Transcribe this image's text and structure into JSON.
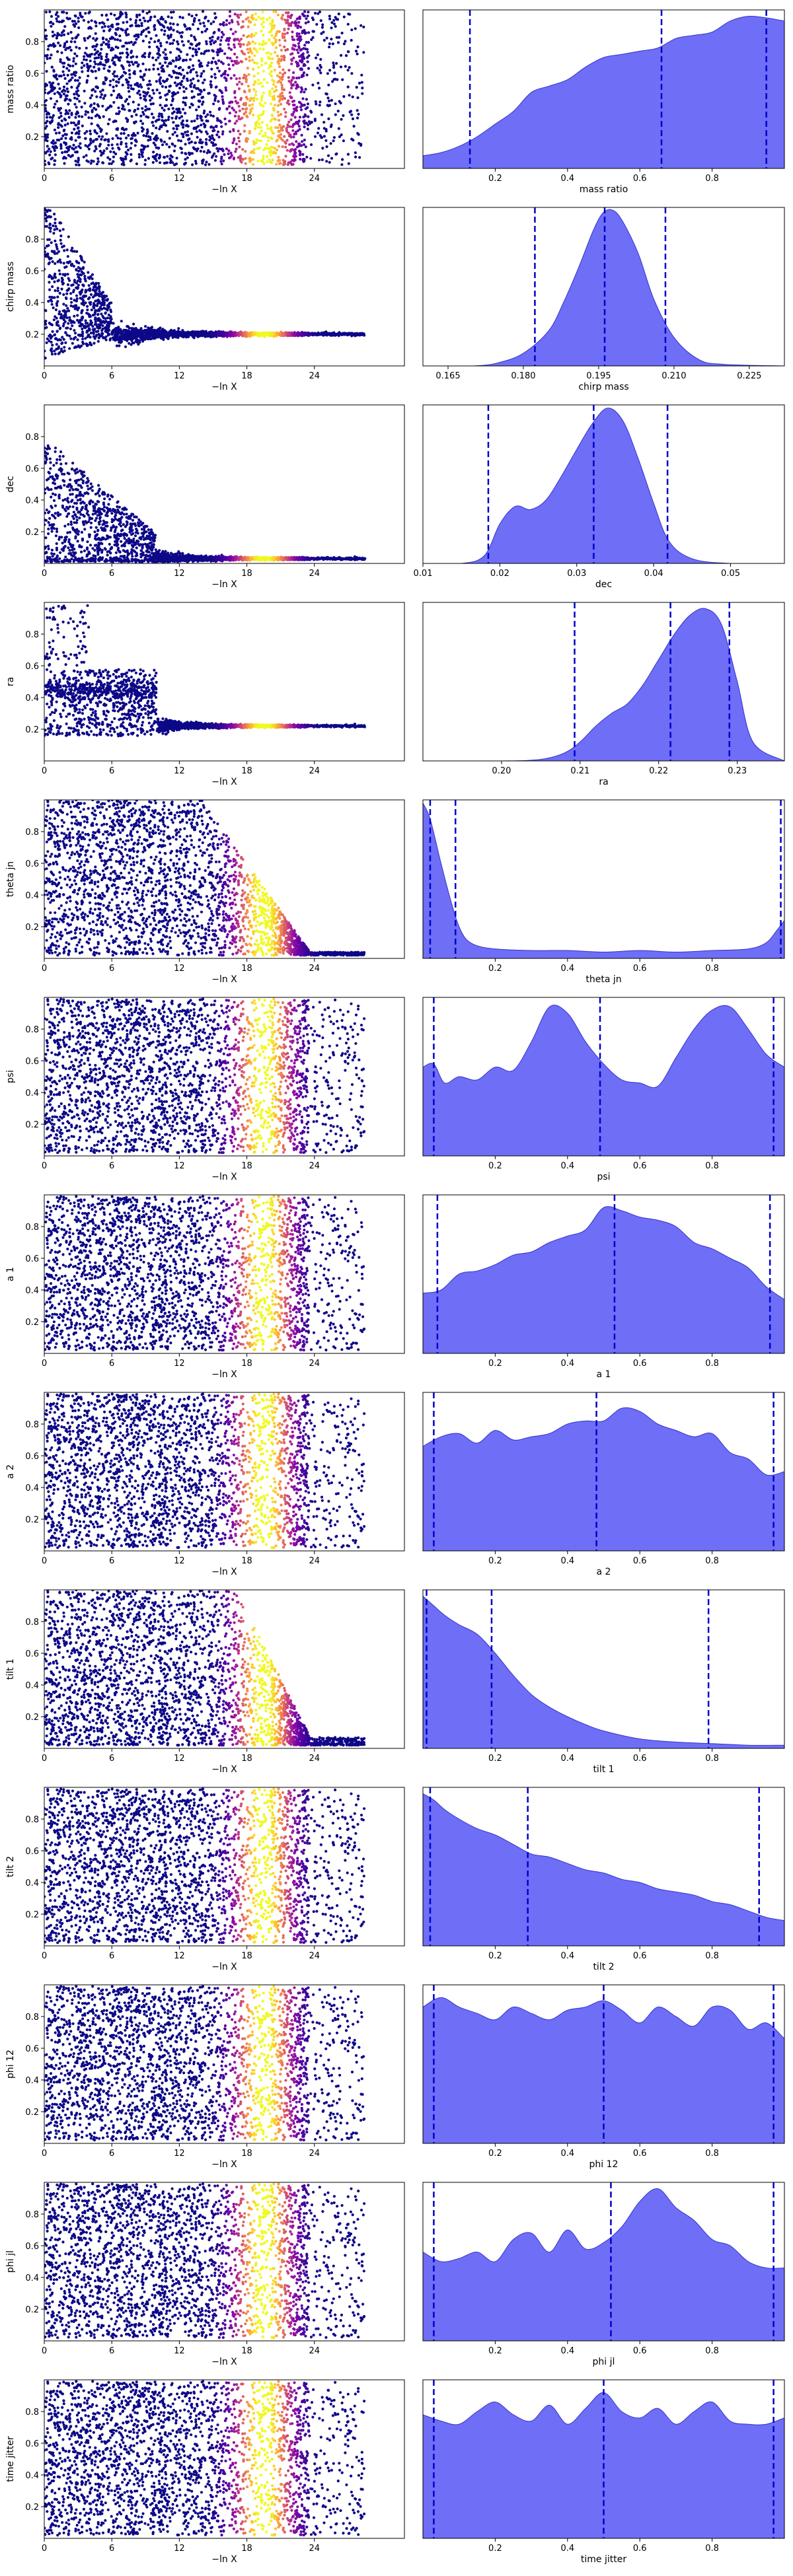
{
  "chart_data": {
    "type": "scatter",
    "description": "Dynesty trace plot: left column = samples vs -ln X coloured by weight; right column = marginal posterior KDE with dashed quantile lines",
    "scatter_xlabel": "−ln X",
    "scatter_xticks": [
      0,
      6,
      12,
      18,
      24
    ],
    "scatter_xlim": [
      0,
      32
    ],
    "colormap": "plasma",
    "hist_fill_color": "#6666f5",
    "hist_edge_color": "#3333cc",
    "quantile_line_color": "#0000cc",
    "panels": [
      {
        "param": "mass ratio",
        "scatter_mode": "uniform",
        "scatter_yticks": [
          "0.2",
          "0.4",
          "0.6",
          "0.8"
        ],
        "scatter_ylim": [
          0,
          1
        ],
        "hist_xlim": [
          0,
          1
        ],
        "hist_xticks": [
          "0.2",
          "0.4",
          "0.6",
          "0.8"
        ],
        "hist_x": [
          0,
          0.05,
          0.1,
          0.15,
          0.2,
          0.25,
          0.3,
          0.35,
          0.4,
          0.45,
          0.5,
          0.55,
          0.6,
          0.65,
          0.7,
          0.75,
          0.8,
          0.85,
          0.9,
          0.95,
          1.0
        ],
        "hist_y": [
          0.08,
          0.1,
          0.14,
          0.2,
          0.28,
          0.36,
          0.48,
          0.52,
          0.56,
          0.64,
          0.7,
          0.72,
          0.74,
          0.76,
          0.82,
          0.84,
          0.86,
          0.93,
          0.96,
          0.95,
          0.93
        ],
        "quantiles": [
          0.13,
          0.66,
          0.95
        ]
      },
      {
        "param": "chirp mass",
        "scatter_mode": "converge",
        "converge_to": 0.2,
        "scatter_yticks": [
          "0.2",
          "0.4",
          "0.6",
          "0.8"
        ],
        "scatter_ylim": [
          0,
          1
        ],
        "hist_xlim": [
          0.16,
          0.232
        ],
        "hist_xticks": [
          "0.165",
          "0.180",
          "0.195",
          "0.210",
          "0.225"
        ],
        "hist_x": [
          0.16,
          0.17,
          0.175,
          0.18,
          0.185,
          0.188,
          0.191,
          0.194,
          0.196,
          0.198,
          0.2,
          0.203,
          0.206,
          0.21,
          0.215,
          0.22,
          0.232
        ],
        "hist_y": [
          0,
          0.0,
          0.02,
          0.08,
          0.22,
          0.4,
          0.62,
          0.86,
          0.97,
          0.98,
          0.9,
          0.7,
          0.42,
          0.18,
          0.04,
          0.01,
          0
        ],
        "quantiles": [
          0.1823,
          0.1962,
          0.2083
        ]
      },
      {
        "param": "dec",
        "scatter_mode": "converge",
        "converge_to": 0.03,
        "scatter_yticks": [
          "0.2",
          "0.4",
          "0.6",
          "0.8"
        ],
        "scatter_ylim": [
          0,
          1
        ],
        "hist_xlim": [
          0.01,
          0.057
        ],
        "hist_xticks": [
          "0.01",
          "0.02",
          "0.03",
          "0.04",
          "0.05"
        ],
        "hist_x": [
          0.01,
          0.015,
          0.018,
          0.02,
          0.022,
          0.024,
          0.026,
          0.028,
          0.03,
          0.032,
          0.034,
          0.036,
          0.038,
          0.04,
          0.042,
          0.045,
          0.05,
          0.057
        ],
        "hist_y": [
          0,
          0,
          0.05,
          0.25,
          0.36,
          0.34,
          0.4,
          0.55,
          0.72,
          0.88,
          0.98,
          0.9,
          0.66,
          0.38,
          0.14,
          0.03,
          0,
          0
        ],
        "quantiles": [
          0.0185,
          0.0322,
          0.0418
        ]
      },
      {
        "param": "ra",
        "scatter_mode": "converge",
        "converge_to": 0.22,
        "scatter_yticks": [
          "0.2",
          "0.4",
          "0.6",
          "0.8"
        ],
        "scatter_ylim": [
          0,
          1
        ],
        "hist_xlim": [
          0.19,
          0.236
        ],
        "hist_xticks": [
          "0.20",
          "0.21",
          "0.22",
          "0.23"
        ],
        "hist_x": [
          0.19,
          0.2,
          0.205,
          0.208,
          0.21,
          0.212,
          0.214,
          0.216,
          0.218,
          0.22,
          0.222,
          0.224,
          0.226,
          0.228,
          0.23,
          0.232,
          0.236
        ],
        "hist_y": [
          0,
          0,
          0.01,
          0.05,
          0.12,
          0.22,
          0.3,
          0.36,
          0.48,
          0.64,
          0.8,
          0.92,
          0.96,
          0.86,
          0.5,
          0.12,
          0
        ],
        "quantiles": [
          0.2093,
          0.2215,
          0.229
        ]
      },
      {
        "param": "theta jn",
        "scatter_mode": "tail",
        "scatter_yticks": [
          "0.2",
          "0.4",
          "0.6",
          "0.8"
        ],
        "scatter_ylim": [
          0,
          1
        ],
        "hist_xlim": [
          0,
          1
        ],
        "hist_xticks": [
          "0.2",
          "0.4",
          "0.6",
          "0.8"
        ],
        "hist_x": [
          0,
          0.02,
          0.05,
          0.08,
          0.1,
          0.12,
          0.15,
          0.2,
          0.3,
          0.4,
          0.5,
          0.6,
          0.7,
          0.8,
          0.9,
          0.95,
          0.98,
          1.0
        ],
        "hist_y": [
          0.98,
          0.88,
          0.6,
          0.34,
          0.2,
          0.12,
          0.08,
          0.06,
          0.05,
          0.05,
          0.04,
          0.05,
          0.04,
          0.05,
          0.06,
          0.1,
          0.18,
          0.24
        ],
        "quantiles": [
          0.02,
          0.09,
          0.99
        ]
      },
      {
        "param": "psi",
        "scatter_mode": "uniform",
        "scatter_yticks": [
          "0.2",
          "0.4",
          "0.6",
          "0.8"
        ],
        "scatter_ylim": [
          0,
          1
        ],
        "hist_xlim": [
          0,
          1
        ],
        "hist_xticks": [
          "0.2",
          "0.4",
          "0.6",
          "0.8"
        ],
        "hist_x": [
          0,
          0.03,
          0.06,
          0.1,
          0.15,
          0.2,
          0.25,
          0.3,
          0.35,
          0.4,
          0.45,
          0.5,
          0.55,
          0.6,
          0.65,
          0.7,
          0.75,
          0.8,
          0.85,
          0.9,
          0.95,
          1.0
        ],
        "hist_y": [
          0.56,
          0.58,
          0.46,
          0.5,
          0.48,
          0.56,
          0.54,
          0.72,
          0.94,
          0.9,
          0.72,
          0.58,
          0.48,
          0.46,
          0.44,
          0.62,
          0.8,
          0.92,
          0.94,
          0.8,
          0.64,
          0.56
        ],
        "quantiles": [
          0.03,
          0.49,
          0.97
        ]
      },
      {
        "param": "a 1",
        "scatter_mode": "uniform",
        "scatter_yticks": [
          "0.2",
          "0.4",
          "0.6",
          "0.8"
        ],
        "scatter_ylim": [
          0,
          1
        ],
        "hist_xlim": [
          0,
          1
        ],
        "hist_xticks": [
          "0.2",
          "0.4",
          "0.6",
          "0.8"
        ],
        "hist_x": [
          0,
          0.05,
          0.1,
          0.15,
          0.2,
          0.25,
          0.3,
          0.35,
          0.4,
          0.45,
          0.5,
          0.55,
          0.6,
          0.65,
          0.7,
          0.75,
          0.8,
          0.85,
          0.9,
          0.95,
          1.0
        ],
        "hist_y": [
          0.38,
          0.4,
          0.5,
          0.52,
          0.56,
          0.62,
          0.64,
          0.7,
          0.74,
          0.78,
          0.92,
          0.9,
          0.86,
          0.84,
          0.8,
          0.7,
          0.66,
          0.6,
          0.54,
          0.42,
          0.34
        ],
        "quantiles": [
          0.04,
          0.53,
          0.96
        ]
      },
      {
        "param": "a 2",
        "scatter_mode": "uniform",
        "scatter_yticks": [
          "0.2",
          "0.4",
          "0.6",
          "0.8"
        ],
        "scatter_ylim": [
          0,
          1
        ],
        "hist_xlim": [
          0,
          1
        ],
        "hist_xticks": [
          "0.2",
          "0.4",
          "0.6",
          "0.8"
        ],
        "hist_x": [
          0,
          0.05,
          0.1,
          0.15,
          0.2,
          0.25,
          0.3,
          0.35,
          0.4,
          0.45,
          0.5,
          0.55,
          0.6,
          0.65,
          0.7,
          0.75,
          0.8,
          0.85,
          0.9,
          0.95,
          1.0
        ],
        "hist_y": [
          0.66,
          0.72,
          0.74,
          0.68,
          0.76,
          0.7,
          0.72,
          0.74,
          0.8,
          0.82,
          0.82,
          0.9,
          0.88,
          0.8,
          0.76,
          0.72,
          0.74,
          0.62,
          0.58,
          0.48,
          0.5
        ],
        "quantiles": [
          0.03,
          0.48,
          0.97
        ]
      },
      {
        "param": "tilt 1",
        "scatter_mode": "tail_light",
        "scatter_yticks": [
          "0.2",
          "0.4",
          "0.6",
          "0.8"
        ],
        "scatter_ylim": [
          0,
          1
        ],
        "hist_xlim": [
          0,
          1
        ],
        "hist_xticks": [
          "0.2",
          "0.4",
          "0.6",
          "0.8"
        ],
        "hist_x": [
          0,
          0.03,
          0.06,
          0.1,
          0.15,
          0.2,
          0.25,
          0.3,
          0.35,
          0.4,
          0.45,
          0.5,
          0.6,
          0.7,
          0.8,
          0.9,
          1.0
        ],
        "hist_y": [
          0.96,
          0.9,
          0.84,
          0.78,
          0.72,
          0.6,
          0.46,
          0.34,
          0.26,
          0.2,
          0.15,
          0.11,
          0.06,
          0.04,
          0.03,
          0.02,
          0.02
        ],
        "quantiles": [
          0.01,
          0.19,
          0.79
        ]
      },
      {
        "param": "tilt 2",
        "scatter_mode": "uniform_dense",
        "scatter_yticks": [
          "0.2",
          "0.4",
          "0.6",
          "0.8"
        ],
        "scatter_ylim": [
          0,
          1
        ],
        "hist_xlim": [
          0,
          1
        ],
        "hist_xticks": [
          "0.2",
          "0.4",
          "0.6",
          "0.8"
        ],
        "hist_x": [
          0,
          0.03,
          0.06,
          0.1,
          0.15,
          0.2,
          0.25,
          0.3,
          0.35,
          0.4,
          0.45,
          0.5,
          0.55,
          0.6,
          0.65,
          0.7,
          0.75,
          0.8,
          0.85,
          0.9,
          0.95,
          1.0
        ],
        "hist_y": [
          0.96,
          0.92,
          0.86,
          0.8,
          0.74,
          0.7,
          0.64,
          0.58,
          0.56,
          0.52,
          0.48,
          0.46,
          0.42,
          0.4,
          0.36,
          0.34,
          0.32,
          0.28,
          0.26,
          0.22,
          0.18,
          0.16
        ],
        "quantiles": [
          0.02,
          0.29,
          0.93
        ]
      },
      {
        "param": "phi 12",
        "scatter_mode": "uniform",
        "scatter_yticks": [
          "0.2",
          "0.4",
          "0.6",
          "0.8"
        ],
        "scatter_ylim": [
          0,
          1
        ],
        "hist_xlim": [
          0,
          1
        ],
        "hist_xticks": [
          "0.2",
          "0.4",
          "0.6",
          "0.8"
        ],
        "hist_x": [
          0,
          0.05,
          0.1,
          0.15,
          0.2,
          0.25,
          0.3,
          0.35,
          0.4,
          0.45,
          0.5,
          0.55,
          0.6,
          0.65,
          0.7,
          0.75,
          0.8,
          0.85,
          0.9,
          0.95,
          1.0
        ],
        "hist_y": [
          0.86,
          0.92,
          0.86,
          0.82,
          0.78,
          0.86,
          0.82,
          0.78,
          0.84,
          0.86,
          0.9,
          0.84,
          0.76,
          0.86,
          0.8,
          0.74,
          0.86,
          0.84,
          0.72,
          0.76,
          0.66
        ],
        "quantiles": [
          0.03,
          0.5,
          0.97
        ]
      },
      {
        "param": "phi jl",
        "scatter_mode": "uniform",
        "scatter_yticks": [
          "0.2",
          "0.4",
          "0.6",
          "0.8"
        ],
        "scatter_ylim": [
          0,
          1
        ],
        "hist_xlim": [
          0,
          1
        ],
        "hist_xticks": [
          "0.2",
          "0.4",
          "0.6",
          "0.8"
        ],
        "hist_x": [
          0,
          0.05,
          0.1,
          0.15,
          0.2,
          0.25,
          0.3,
          0.35,
          0.4,
          0.45,
          0.5,
          0.55,
          0.6,
          0.65,
          0.7,
          0.75,
          0.8,
          0.85,
          0.9,
          0.95,
          1.0
        ],
        "hist_y": [
          0.56,
          0.5,
          0.52,
          0.56,
          0.5,
          0.64,
          0.68,
          0.56,
          0.7,
          0.58,
          0.62,
          0.72,
          0.88,
          0.96,
          0.84,
          0.76,
          0.64,
          0.6,
          0.5,
          0.46,
          0.46
        ],
        "quantiles": [
          0.03,
          0.52,
          0.97
        ]
      },
      {
        "param": "time jitter",
        "scatter_mode": "uniform",
        "scatter_yticks": [
          "0.2",
          "0.4",
          "0.6",
          "0.8"
        ],
        "scatter_ylim": [
          0,
          1
        ],
        "hist_xlim": [
          0,
          1
        ],
        "hist_xticks": [
          "0.2",
          "0.4",
          "0.6",
          "0.8"
        ],
        "hist_x": [
          0,
          0.05,
          0.1,
          0.15,
          0.2,
          0.25,
          0.3,
          0.35,
          0.4,
          0.45,
          0.5,
          0.55,
          0.6,
          0.65,
          0.7,
          0.75,
          0.8,
          0.85,
          0.9,
          0.95,
          1.0
        ],
        "hist_y": [
          0.78,
          0.74,
          0.72,
          0.8,
          0.86,
          0.78,
          0.74,
          0.84,
          0.72,
          0.82,
          0.92,
          0.8,
          0.76,
          0.82,
          0.72,
          0.8,
          0.86,
          0.74,
          0.72,
          0.72,
          0.76
        ],
        "quantiles": [
          0.03,
          0.5,
          0.97
        ]
      }
    ]
  }
}
